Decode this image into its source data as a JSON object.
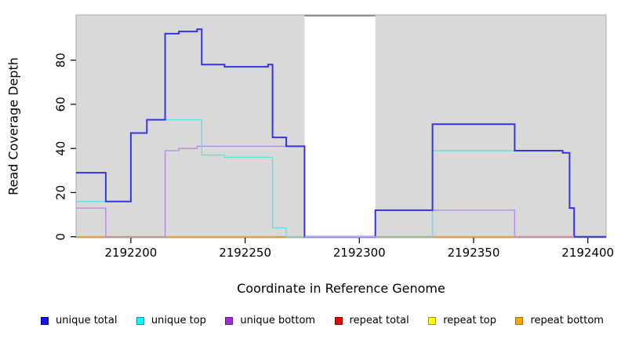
{
  "figure_title": "",
  "chart_data": {
    "type": "line",
    "subtype": "step-coverage-plot",
    "title": "",
    "xlabel": "Coordinate in Reference Genome",
    "ylabel": "Read Coverage Depth",
    "xlim": [
      2192176,
      2192408
    ],
    "ylim": [
      0,
      100
    ],
    "x_ticks": [
      2192200,
      2192250,
      2192300,
      2192350,
      2192400
    ],
    "y_ticks": [
      0,
      20,
      40,
      60,
      80
    ],
    "grid": false,
    "panel_bg": "#d9d9d9",
    "panel_border": "#ababab",
    "masked_region": {
      "from": 2192276,
      "to": 2192307,
      "color": "#ffffff",
      "top_edge_color": "#8e8e8e"
    },
    "series": [
      {
        "name": "repeat total",
        "line_color": "#e60000",
        "line_width": 1,
        "points": [
          [
            2192176,
            0
          ],
          [
            2192408,
            0
          ]
        ]
      },
      {
        "name": "repeat top",
        "line_color": "#ffff00",
        "line_width": 1,
        "points": [
          [
            2192176,
            0
          ],
          [
            2192408,
            0
          ]
        ]
      },
      {
        "name": "repeat bottom",
        "line_color": "#ff9e00",
        "line_width": 1.7,
        "points": [
          [
            2192176,
            0
          ],
          [
            2192408,
            0
          ]
        ]
      },
      {
        "name": "unique bottom",
        "line_color": "#b286e6",
        "line_width": 1.3,
        "points": [
          [
            2192176,
            13
          ],
          [
            2192189,
            0
          ],
          [
            2192215,
            39
          ],
          [
            2192221,
            40
          ],
          [
            2192229,
            41
          ],
          [
            2192276,
            0
          ],
          [
            2192307,
            12
          ],
          [
            2192368,
            0
          ],
          [
            2192408,
            0
          ]
        ]
      },
      {
        "name": "unique top",
        "line_color": "#5fe0e9",
        "line_width": 1.4,
        "points": [
          [
            2192176,
            16
          ],
          [
            2192200,
            47
          ],
          [
            2192207,
            53
          ],
          [
            2192231,
            37
          ],
          [
            2192241,
            36
          ],
          [
            2192262,
            4
          ],
          [
            2192268,
            0
          ],
          [
            2192332,
            39
          ],
          [
            2192389,
            38
          ],
          [
            2192392,
            13
          ],
          [
            2192394,
            0
          ],
          [
            2192408,
            0
          ]
        ]
      },
      {
        "name": "unique total",
        "line_color": "#3434e2",
        "line_width": 2,
        "points": [
          [
            2192176,
            29
          ],
          [
            2192189,
            16
          ],
          [
            2192200,
            47
          ],
          [
            2192207,
            53
          ],
          [
            2192215,
            92
          ],
          [
            2192221,
            93
          ],
          [
            2192229,
            94
          ],
          [
            2192231,
            78
          ],
          [
            2192241,
            77
          ],
          [
            2192260,
            78
          ],
          [
            2192262,
            45
          ],
          [
            2192268,
            41
          ],
          [
            2192276,
            0
          ],
          [
            2192307,
            12
          ],
          [
            2192332,
            51
          ],
          [
            2192368,
            39
          ],
          [
            2192389,
            38
          ],
          [
            2192392,
            13
          ],
          [
            2192394,
            0
          ],
          [
            2192408,
            0
          ]
        ]
      }
    ],
    "zero_line_overlays": [
      {
        "from": 2192276,
        "to": 2192307,
        "color": "#b4a7ec"
      },
      {
        "from": 2192307,
        "to": 2192332,
        "color": "#85c98f"
      },
      {
        "from": 2192368,
        "to": 2192394,
        "color": "#e5829f"
      }
    ],
    "legend_position": "bottom"
  },
  "legend": {
    "items": [
      {
        "label": "unique total",
        "swatch_fill": "#1414f0",
        "swatch_border": "#000090"
      },
      {
        "label": "unique top",
        "swatch_fill": "#00ffff",
        "swatch_border": "#0a9aa8"
      },
      {
        "label": "unique bottom",
        "swatch_fill": "#9933cc",
        "swatch_border": "#5c1e99"
      },
      {
        "label": "repeat total",
        "swatch_fill": "#ee0000",
        "swatch_border": "#8f0000"
      },
      {
        "label": "repeat top",
        "swatch_fill": "#ffff00",
        "swatch_border": "#9a9a00"
      },
      {
        "label": "repeat bottom",
        "swatch_fill": "#ffa500",
        "swatch_border": "#b36b00"
      }
    ]
  }
}
